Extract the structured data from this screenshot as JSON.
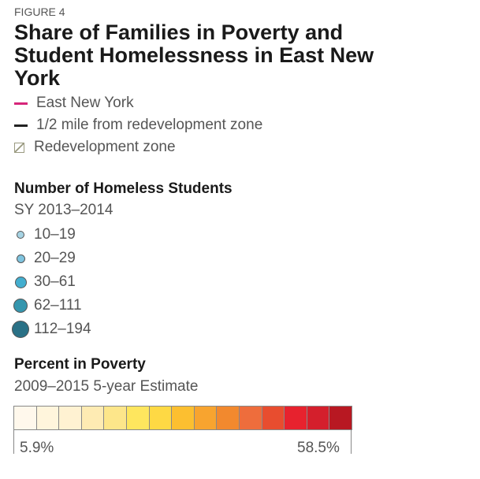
{
  "figure_label": "FIGURE 4",
  "title": "Share of Families in Poverty and Student Homelessness in East New York",
  "map_legend": [
    {
      "label": "East New York",
      "symbol": "line",
      "color": "#d6257a"
    },
    {
      "label": "1/2 mile from redevelopment zone",
      "symbol": "line",
      "color": "#222222"
    },
    {
      "label": "Redevelopment zone",
      "symbol": "hatch",
      "color": "#9a9a80"
    }
  ],
  "homeless": {
    "title": "Number of Homeless Students",
    "subtitle": "SY 2013–2014",
    "bins": [
      {
        "label": "10–19",
        "color": "#a6d3e3"
      },
      {
        "label": "20–29",
        "color": "#7fc4df"
      },
      {
        "label": "30–61",
        "color": "#43aecf"
      },
      {
        "label": "62–111",
        "color": "#3596ae"
      },
      {
        "label": "112–194",
        "color": "#2a7186"
      }
    ]
  },
  "poverty": {
    "title": "Percent in Poverty",
    "subtitle": "2009–2015 5-year Estimate",
    "min_label": "5.9%",
    "max_label": "58.5%",
    "colors": [
      "#fff8ec",
      "#fff5dc",
      "#fff2d2",
      "#feebb3",
      "#fde68a",
      "#fee65e",
      "#fed944",
      "#fcbf30",
      "#f8a42f",
      "#f2892e",
      "#ee6d3c",
      "#e84d2f",
      "#e7222e",
      "#d41f2c",
      "#b81822"
    ]
  }
}
